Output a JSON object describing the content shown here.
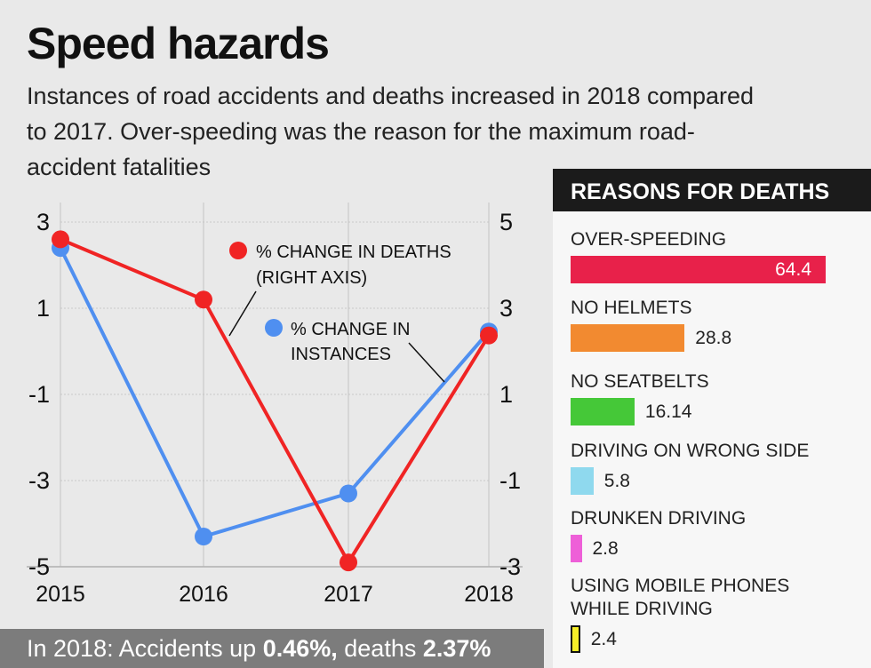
{
  "header": {
    "title": "Speed hazards",
    "subtitle": "Instances of road accidents and deaths increased in 2018 compared to 2017. Over-speeding was the reason for the maximum road-accident fatalities"
  },
  "chart_data": [
    {
      "type": "line",
      "title": "",
      "x": [
        "2015",
        "2016",
        "2017",
        "2018"
      ],
      "left_axis": {
        "ylim": [
          -5,
          3
        ],
        "ticks": [
          "3",
          "1",
          "-1",
          "-3",
          "-5"
        ]
      },
      "right_axis": {
        "ylim": [
          -3,
          5
        ],
        "ticks": [
          "5",
          "3",
          "1",
          "-1",
          "-3"
        ]
      },
      "series": [
        {
          "name": "% CHANGE IN INSTANCES",
          "axis": "left",
          "color": "#4f8ff0",
          "values": [
            2.4,
            -4.3,
            -3.3,
            0.46
          ]
        },
        {
          "name": "% CHANGE IN DEATHS",
          "axis": "right",
          "color": "#f02424",
          "values": [
            4.6,
            3.2,
            -2.9,
            2.37
          ]
        }
      ],
      "annotations": [
        {
          "series": "% CHANGE IN DEATHS",
          "line1": "% CHANGE IN DEATHS",
          "line2": "(RIGHT AXIS)"
        },
        {
          "series": "% CHANGE IN INSTANCES",
          "line1": "% CHANGE IN",
          "line2": "INSTANCES"
        }
      ]
    },
    {
      "type": "bar",
      "title": "REASONS FOR DEATHS",
      "categories": [
        "OVER-SPEEDING",
        "NO HELMETS",
        "NO SEATBELTS",
        "DRIVING ON WRONG SIDE",
        "DRUNKEN DRIVING",
        "USING MOBILE PHONES WHILE DRIVING"
      ],
      "labels": [
        [
          "OVER-SPEEDING"
        ],
        [
          "NO HELMETS"
        ],
        [
          "NO SEATBELTS"
        ],
        [
          "DRIVING ON WRONG SIDE"
        ],
        [
          "DRUNKEN DRIVING"
        ],
        [
          "USING MOBILE PHONES",
          "WHILE DRIVING"
        ]
      ],
      "values": [
        64.4,
        28.8,
        16.14,
        5.8,
        2.8,
        2.4
      ],
      "value_labels": [
        "64.4",
        "28.8",
        "16.14",
        "5.8",
        "2.8",
        "2.4"
      ],
      "colors": [
        "#e8214a",
        "#f28a30",
        "#45c838",
        "#8fd9ee",
        "#ee5fd8",
        "#f6ee28"
      ]
    }
  ],
  "footer": {
    "prefix": "In 2018: Accidents up ",
    "accidents": "0.46%,",
    "middle": "  deaths ",
    "deaths": "2.37%"
  }
}
